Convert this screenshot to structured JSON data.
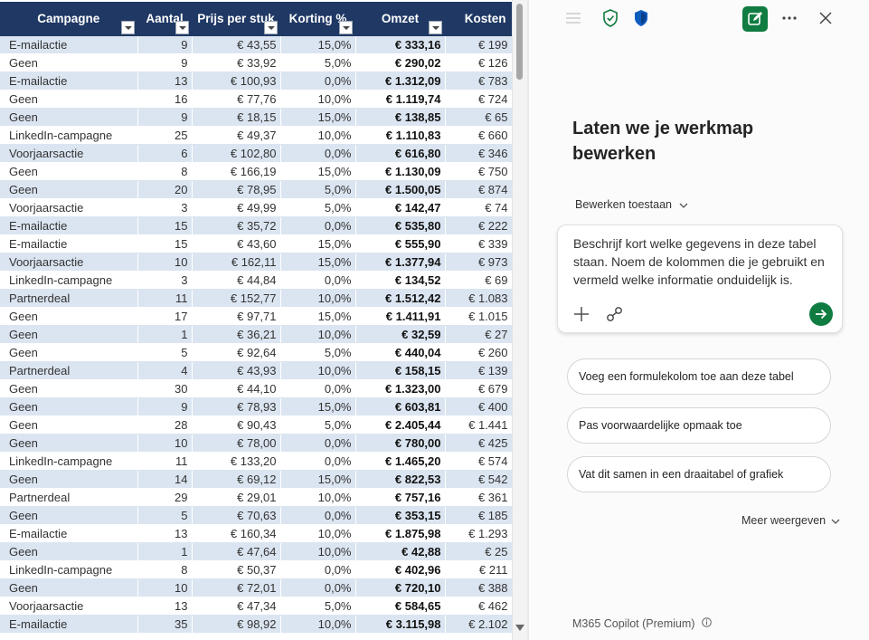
{
  "table": {
    "headers": [
      "Campagne",
      "Aantal",
      "Prijs per stuk",
      "Korting %",
      "Omzet",
      "Kosten"
    ],
    "rows": [
      [
        "E-mailactie",
        "9",
        "€ 43,55",
        "15,0%",
        "€ 333,16",
        "€ 199"
      ],
      [
        "Geen",
        "9",
        "€ 33,92",
        "5,0%",
        "€ 290,02",
        "€ 126"
      ],
      [
        "E-mailactie",
        "13",
        "€ 100,93",
        "0,0%",
        "€ 1.312,09",
        "€ 783"
      ],
      [
        "Geen",
        "16",
        "€ 77,76",
        "10,0%",
        "€ 1.119,74",
        "€ 724"
      ],
      [
        "Geen",
        "9",
        "€ 18,15",
        "15,0%",
        "€ 138,85",
        "€ 65"
      ],
      [
        "LinkedIn-campagne",
        "25",
        "€ 49,37",
        "10,0%",
        "€ 1.110,83",
        "€ 660"
      ],
      [
        "Voorjaarsactie",
        "6",
        "€ 102,80",
        "0,0%",
        "€ 616,80",
        "€ 346"
      ],
      [
        "Geen",
        "8",
        "€ 166,19",
        "15,0%",
        "€ 1.130,09",
        "€ 750"
      ],
      [
        "Geen",
        "20",
        "€ 78,95",
        "5,0%",
        "€ 1.500,05",
        "€ 874"
      ],
      [
        "Voorjaarsactie",
        "3",
        "€ 49,99",
        "5,0%",
        "€ 142,47",
        "€ 74"
      ],
      [
        "E-mailactie",
        "15",
        "€ 35,72",
        "0,0%",
        "€ 535,80",
        "€ 222"
      ],
      [
        "E-mailactie",
        "15",
        "€ 43,60",
        "15,0%",
        "€ 555,90",
        "€ 339"
      ],
      [
        "Voorjaarsactie",
        "10",
        "€ 162,11",
        "15,0%",
        "€ 1.377,94",
        "€ 973"
      ],
      [
        "LinkedIn-campagne",
        "3",
        "€ 44,84",
        "0,0%",
        "€ 134,52",
        "€ 69"
      ],
      [
        "Partnerdeal",
        "11",
        "€ 152,77",
        "10,0%",
        "€ 1.512,42",
        "€ 1.083"
      ],
      [
        "Geen",
        "17",
        "€ 97,71",
        "15,0%",
        "€ 1.411,91",
        "€ 1.015"
      ],
      [
        "Geen",
        "1",
        "€ 36,21",
        "10,0%",
        "€ 32,59",
        "€ 27"
      ],
      [
        "Geen",
        "5",
        "€ 92,64",
        "5,0%",
        "€ 440,04",
        "€ 260"
      ],
      [
        "Partnerdeal",
        "4",
        "€ 43,93",
        "10,0%",
        "€ 158,15",
        "€ 139"
      ],
      [
        "Geen",
        "30",
        "€ 44,10",
        "0,0%",
        "€ 1.323,00",
        "€ 679"
      ],
      [
        "Geen",
        "9",
        "€ 78,93",
        "15,0%",
        "€ 603,81",
        "€ 400"
      ],
      [
        "Geen",
        "28",
        "€ 90,43",
        "5,0%",
        "€ 2.405,44",
        "€ 1.441"
      ],
      [
        "Geen",
        "10",
        "€ 78,00",
        "0,0%",
        "€ 780,00",
        "€ 425"
      ],
      [
        "LinkedIn-campagne",
        "11",
        "€ 133,20",
        "0,0%",
        "€ 1.465,20",
        "€ 574"
      ],
      [
        "Geen",
        "14",
        "€ 69,12",
        "15,0%",
        "€ 822,53",
        "€ 542"
      ],
      [
        "Partnerdeal",
        "29",
        "€ 29,01",
        "10,0%",
        "€ 757,16",
        "€ 361"
      ],
      [
        "Geen",
        "5",
        "€ 70,63",
        "0,0%",
        "€ 353,15",
        "€ 185"
      ],
      [
        "E-mailactie",
        "13",
        "€ 160,34",
        "10,0%",
        "€ 1.875,98",
        "€ 1.293"
      ],
      [
        "Geen",
        "1",
        "€ 47,64",
        "10,0%",
        "€ 42,88",
        "€ 25"
      ],
      [
        "LinkedIn-campagne",
        "8",
        "€ 50,37",
        "0,0%",
        "€ 402,96",
        "€ 211"
      ],
      [
        "Geen",
        "10",
        "€ 72,01",
        "0,0%",
        "€ 720,10",
        "€ 388"
      ],
      [
        "Voorjaarsactie",
        "13",
        "€ 47,34",
        "5,0%",
        "€ 584,65",
        "€ 462"
      ],
      [
        "E-mailactie",
        "35",
        "€ 98,92",
        "10,0%",
        "€ 3.115,98",
        "€ 2.102"
      ]
    ]
  },
  "copilot": {
    "topbar_icons": [
      "menu-icon",
      "shield-check-icon",
      "shield-icon",
      "new-chat-icon",
      "more-icon",
      "close-icon"
    ],
    "heading": "Laten we je werkmap bewerken",
    "mode_label": "Bewerken toestaan",
    "prompt_text": "Beschrijf kort welke gegevens in deze tabel staan. Noem de kolommen die je gebruikt en vermeld welke informatie onduidelijk is.",
    "suggestions": [
      "Voeg een formulekolom toe aan deze tabel",
      "Pas voorwaardelijke opmaak toe",
      "Vat dit samen in een draaitabel of grafiek"
    ],
    "more_label": "Meer weergeven",
    "footer_label": "M365 Copilot (Premium)"
  },
  "colors": {
    "header_bg": "#1f3864",
    "band_bg": "#dbe5f1",
    "accent_green": "#107c41",
    "shield_green": "#107c41",
    "shield_blue": "#0f5cbf"
  }
}
